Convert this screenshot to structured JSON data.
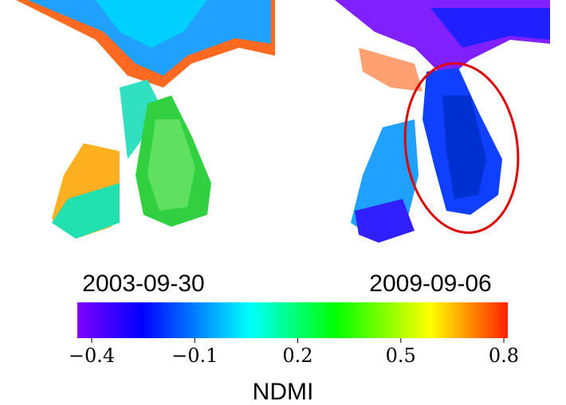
{
  "panels": [
    {
      "label": "2003-09-30"
    },
    {
      "label": "2009-09-06"
    }
  ],
  "colorbar": {
    "label": "NDMI",
    "lim": [
      -0.4,
      0.8
    ],
    "ticks": [
      {
        "value": -0.4,
        "label": "−0.4"
      },
      {
        "value": -0.1,
        "label": "−0.1"
      },
      0.2,
      0.5,
      0.8
    ]
  }
}
